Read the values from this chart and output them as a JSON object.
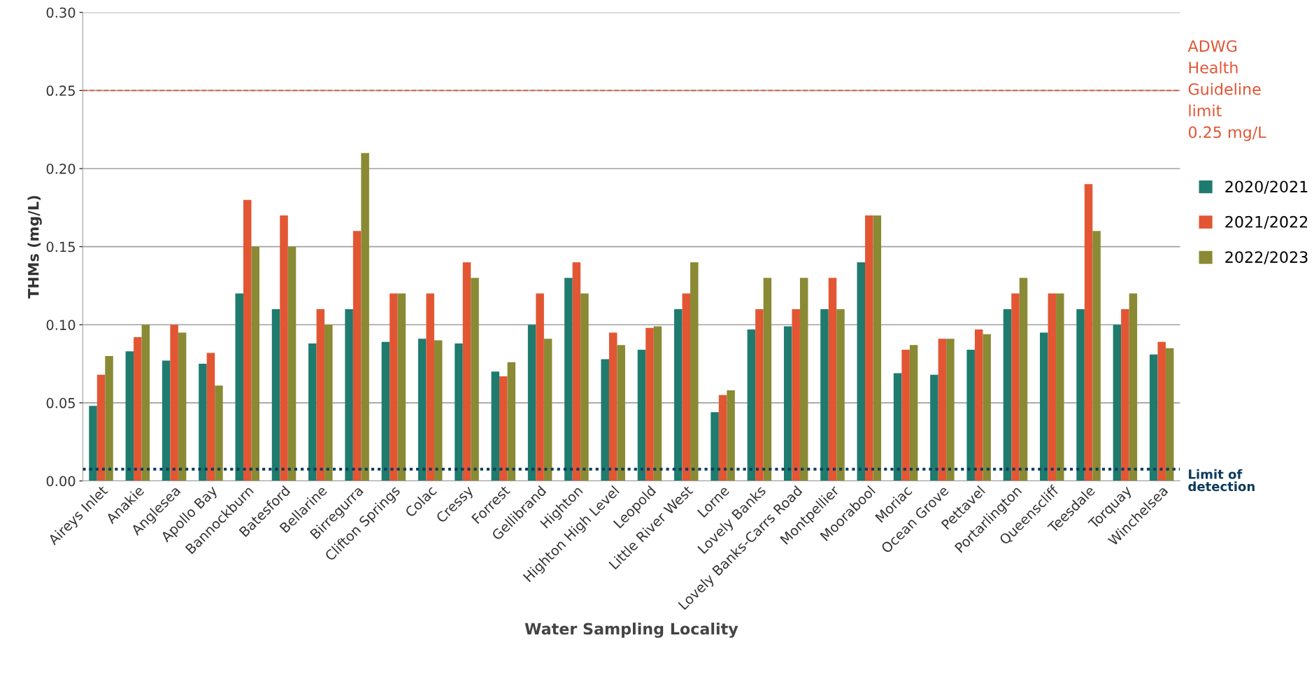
{
  "chart_data": {
    "type": "bar",
    "xlabel": "Water Sampling Locality",
    "ylabel": "THMs (mg/L)",
    "categories": [
      "Aireys Inlet",
      "Anakie",
      "Anglesea",
      "Apollo Bay",
      "Bannockburn",
      "Batesford",
      "Bellarine",
      "Birregurra",
      "Clifton Springs",
      "Colac",
      "Cressy",
      "Forrest",
      "Gellibrand",
      "Highton",
      "Highton High Level",
      "Leopold",
      "Little River West",
      "Lorne",
      "Lovely Banks",
      "Lovely Banks-Carrs Road",
      "Montpellier",
      "Moorabool",
      "Moriac",
      "Ocean Grove",
      "Pettavel",
      "Portarlington",
      "Queenscliff",
      "Teesdale",
      "Torquay",
      "Winchelsea"
    ],
    "series": [
      {
        "name": "2020/2021",
        "color": "#1e7b6e",
        "values": [
          0.048,
          0.083,
          0.077,
          0.075,
          0.12,
          0.11,
          0.088,
          0.11,
          0.089,
          0.091,
          0.088,
          0.07,
          0.1,
          0.13,
          0.078,
          0.084,
          0.11,
          0.044,
          0.097,
          0.099,
          0.11,
          0.14,
          0.069,
          0.068,
          0.084,
          0.11,
          0.095,
          0.11,
          0.1,
          0.081
        ]
      },
      {
        "name": "2021/2022",
        "color": "#e25634",
        "values": [
          0.068,
          0.092,
          0.1,
          0.082,
          0.18,
          0.17,
          0.11,
          0.16,
          0.12,
          0.12,
          0.14,
          0.067,
          0.12,
          0.14,
          0.095,
          0.098,
          0.12,
          0.055,
          0.11,
          0.11,
          0.13,
          0.17,
          0.084,
          0.091,
          0.097,
          0.12,
          0.12,
          0.19,
          0.11,
          0.089
        ]
      },
      {
        "name": "2022/2023",
        "color": "#8a8a35",
        "values": [
          0.08,
          0.1,
          0.095,
          0.061,
          0.15,
          0.15,
          0.1,
          0.21,
          0.12,
          0.09,
          0.13,
          0.076,
          0.091,
          0.12,
          0.087,
          0.099,
          0.14,
          0.058,
          0.13,
          0.13,
          0.11,
          0.17,
          0.087,
          0.091,
          0.094,
          0.13,
          0.12,
          0.16,
          0.12,
          0.085
        ]
      }
    ],
    "ylim": [
      0,
      0.3
    ],
    "yticks": [
      {
        "value": 0,
        "label": "0.00"
      },
      {
        "value": 0.05,
        "label": "0.05"
      },
      {
        "value": 0.1,
        "label": "0.10"
      },
      {
        "value": 0.15,
        "label": "0.15"
      },
      {
        "value": 0.2,
        "label": "0.20"
      },
      {
        "value": 0.25,
        "label": "0.25"
      },
      {
        "value": 0.3,
        "label": "0.30"
      }
    ],
    "grid": "y",
    "legend": "right",
    "ref_lines": [
      {
        "axis": "y",
        "value": 0.25,
        "label": "ADWG\nHealth\nGuideline\nlimit\n0.25 mg/L",
        "color": "#e25634",
        "line_style": "dashed"
      },
      {
        "axis": "y",
        "value": 0.0075,
        "label": "Limit of\ndetection",
        "color": "#0d3b5e",
        "line_style": "dotted"
      }
    ]
  }
}
